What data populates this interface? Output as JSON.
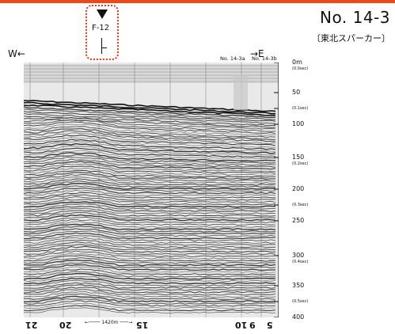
{
  "header": {
    "title": "No. 14-3",
    "subtitle": "〔東北スパーカー〕"
  },
  "directions": {
    "west": "W←",
    "east": "→E"
  },
  "fault": {
    "label": "F-12"
  },
  "cross_lines": [
    "No. 14-3a",
    "No. 14-3b"
  ],
  "depth_axis": [
    {
      "value": "0m",
      "sub": "(0.0sec)"
    },
    {
      "value": "50",
      "sub": ""
    },
    {
      "value": "",
      "sub": "(0.1sec)"
    },
    {
      "value": "100",
      "sub": ""
    },
    {
      "value": "150",
      "sub": "(0.2sec)"
    },
    {
      "value": "200",
      "sub": ""
    },
    {
      "value": "",
      "sub": "(0.3sec)"
    },
    {
      "value": "250",
      "sub": ""
    },
    {
      "value": "300",
      "sub": "(0.4sec)"
    },
    {
      "value": "350",
      "sub": ""
    },
    {
      "value": "",
      "sub": "(0.5sec)"
    },
    {
      "value": "400",
      "sub": ""
    }
  ],
  "shot_points": [
    "21",
    "20",
    "15",
    "10",
    "9",
    "5"
  ],
  "scale_bar": "1420m",
  "colors": {
    "accent": "#e84a1e",
    "fault_box": "#e8351a"
  }
}
